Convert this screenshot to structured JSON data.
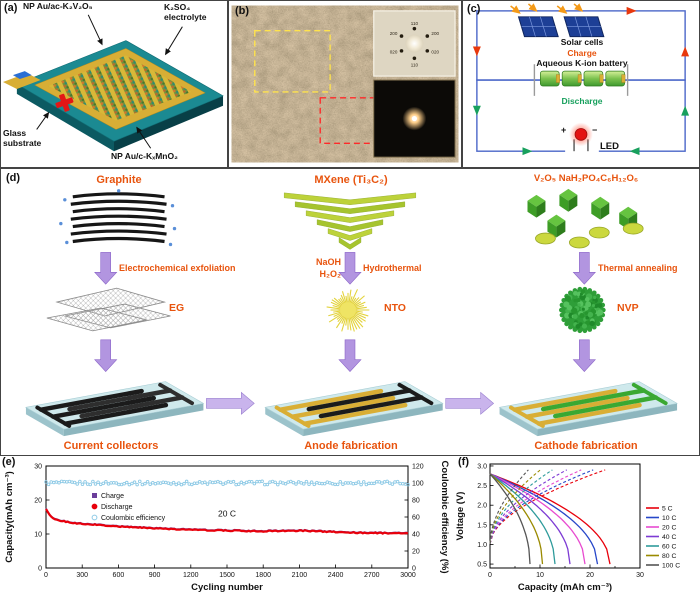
{
  "panel_a": {
    "tag": "(a)",
    "label_top_left": "NP Au/ac-K₂V₂O₅",
    "label_top_right": "K₂SO₄ electrolyte",
    "label_bottom_left": "Glass substrate",
    "label_bottom_right": "NP Au/c-KₓMnO₂"
  },
  "panel_b": {
    "tag": "(b)",
    "diffraction_labels": [
      "110",
      "200",
      "020",
      "110",
      "020",
      "200"
    ]
  },
  "panel_c": {
    "tag": "(c)",
    "solar_label": "Solar cells",
    "charge_label": "Charge",
    "battery_label": "Aqueous K-ion battery",
    "discharge_label": "Discharge",
    "plus": "+",
    "minus": "−",
    "led_label": "LED"
  },
  "panel_d": {
    "tag": "(d)",
    "col1": {
      "material": "Graphite",
      "process": "Electrochemical exfoliation",
      "product": "EG",
      "result": "Current collectors"
    },
    "col2": {
      "material": "MXene (Ti₃C₂)",
      "reagent1": "NaOH",
      "reagent2": "H₂O₂",
      "process": "Hydrothermal",
      "product": "NTO",
      "result": "Anode fabrication"
    },
    "col3": {
      "material": "V₂O₅ NaH₂PO₄C₆H₁₂O₆",
      "process": "Thermal annealing",
      "product": "NVP",
      "result": "Cathode fabrication"
    }
  },
  "chart_data": [
    {
      "id": "e",
      "tag": "(e)",
      "type": "line",
      "xlabel": "Cycling number",
      "ylabel_left": "Capacity(mAh cm⁻³)",
      "ylabel_right": "Coulombic efficiency (%)",
      "xlim": [
        0,
        3000
      ],
      "xticks": [
        0,
        300,
        600,
        900,
        1200,
        1500,
        1800,
        2100,
        2400,
        2700,
        3000
      ],
      "ylim_left": [
        0,
        30
      ],
      "yticks_left": [
        0,
        10,
        20,
        30
      ],
      "ylim_right": [
        0,
        120
      ],
      "yticks_right": [
        0,
        20,
        40,
        60,
        80,
        100,
        120
      ],
      "annotation": "20 C",
      "legend": [
        {
          "label": "Charge",
          "color": "#6a3d9a",
          "marker": "square"
        },
        {
          "label": "Discharge",
          "color": "#e8000b",
          "marker": "circle"
        },
        {
          "label": "Coulombic efficiency",
          "color": "#8ecae6",
          "marker": "open-circle"
        }
      ],
      "charge_offset": 0.25,
      "coulombic_efficiency": 100,
      "discharge_capacity": [
        [
          0,
          17.3
        ],
        [
          30,
          15.6
        ],
        [
          60,
          14.7
        ],
        [
          100,
          14.1
        ],
        [
          150,
          13.7
        ],
        [
          200,
          13.4
        ],
        [
          300,
          13.0
        ],
        [
          450,
          12.6
        ],
        [
          600,
          12.2
        ],
        [
          750,
          11.9
        ],
        [
          900,
          11.7
        ],
        [
          1050,
          11.4
        ],
        [
          1200,
          11.2
        ],
        [
          1350,
          11.1
        ],
        [
          1500,
          11.0
        ],
        [
          1650,
          10.9
        ],
        [
          1800,
          10.8
        ],
        [
          1950,
          10.9
        ],
        [
          2100,
          11.0
        ],
        [
          2250,
          10.8
        ],
        [
          2400,
          10.6
        ],
        [
          2550,
          10.4
        ],
        [
          2700,
          10.3
        ],
        [
          2850,
          10.2
        ],
        [
          3000,
          10.2
        ]
      ]
    },
    {
      "id": "f",
      "tag": "(f)",
      "type": "line",
      "xlabel": "Capacity (mAh cm⁻³)",
      "ylabel": "Voltage (V)",
      "xlim": [
        0,
        30
      ],
      "xticks": [
        0,
        10,
        20,
        30
      ],
      "xticks_minor": [
        5,
        15,
        25
      ],
      "ylim": [
        0.4,
        3.05
      ],
      "yticks": [
        0.5,
        1.0,
        1.5,
        2.0,
        2.5,
        3.0
      ],
      "voltage_window": [
        0.5,
        2.8
      ],
      "rates": [
        {
          "label": "5 C",
          "color": "#e8000b",
          "discharge_capacity": 24
        },
        {
          "label": "10 C",
          "color": "#2747c9",
          "discharge_capacity": 21.5
        },
        {
          "label": "20 C",
          "color": "#e84bd0",
          "discharge_capacity": 19
        },
        {
          "label": "40 C",
          "color": "#7d3bd4",
          "discharge_capacity": 16
        },
        {
          "label": "60 C",
          "color": "#2e9b9b",
          "discharge_capacity": 13
        },
        {
          "label": "80 C",
          "color": "#9a8a00",
          "discharge_capacity": 10.5
        },
        {
          "label": "100 C",
          "color": "#555555",
          "discharge_capacity": 8
        }
      ]
    }
  ]
}
